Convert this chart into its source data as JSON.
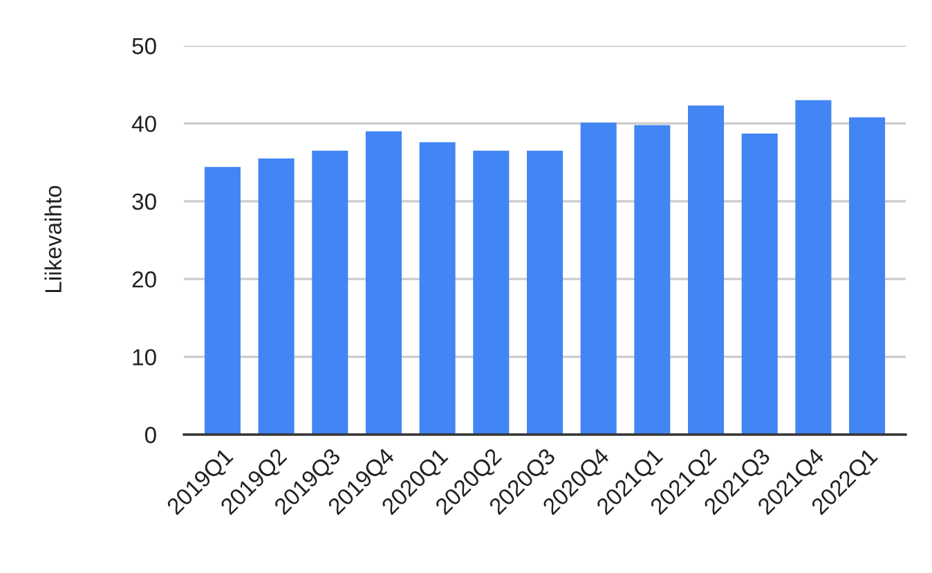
{
  "chart_data": {
    "type": "bar",
    "ylabel": "Liikevaihto",
    "categories": [
      "2019Q1",
      "2019Q2",
      "2019Q3",
      "2019Q4",
      "2020Q1",
      "2020Q2",
      "2020Q3",
      "2020Q4",
      "2021Q1",
      "2021Q2",
      "2021Q3",
      "2021Q4",
      "2022Q1"
    ],
    "values": [
      34.4,
      35.5,
      36.5,
      39.0,
      37.6,
      36.5,
      36.5,
      40.1,
      39.8,
      42.3,
      38.7,
      43.0,
      40.8
    ],
    "color": "#4285f4",
    "ylim": [
      0,
      50
    ],
    "yticks": [
      0,
      10,
      20,
      30,
      40,
      50
    ],
    "grid": "y",
    "legend": false
  }
}
